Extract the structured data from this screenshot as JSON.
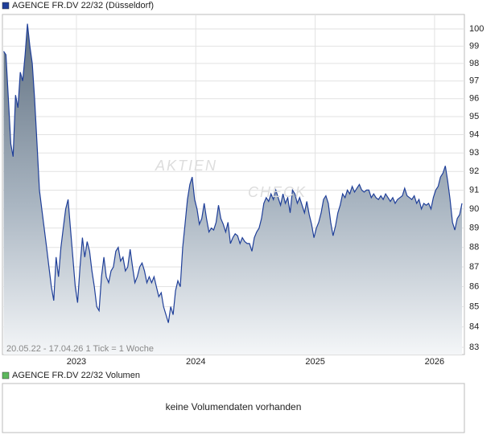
{
  "chart_data": {
    "type": "area",
    "title": "AGENCE FR.DV 22/32 (Düsseldorf)",
    "color": "#1f3f99",
    "footer": "20.05.22 - 17.04.26   1 Tick = 1 Woche",
    "watermark": [
      "AKTIEN",
      "CHECK"
    ],
    "volume_title": "AGENCE FR.DV 22/32 Volumen",
    "volume_color": "#5cb85c",
    "volume_note": "keine Volumendaten vorhanden",
    "log_scale": true,
    "grid": true,
    "xlim": [
      2022.38,
      2026.25
    ],
    "xticks": [
      2023,
      2024,
      2025,
      2026
    ],
    "ylim": [
      82.65,
      100.85
    ],
    "yticks": [
      83,
      84,
      85,
      86,
      87,
      88,
      89,
      90,
      91,
      92,
      93,
      94,
      95,
      96,
      97,
      98,
      99,
      100
    ],
    "x": [
      2022.39,
      2022.41,
      2022.43,
      2022.45,
      2022.47,
      2022.49,
      2022.51,
      2022.53,
      2022.55,
      2022.57,
      2022.59,
      2022.61,
      2022.63,
      2022.65,
      2022.67,
      2022.69,
      2022.71,
      2022.73,
      2022.75,
      2022.77,
      2022.79,
      2022.81,
      2022.83,
      2022.85,
      2022.87,
      2022.89,
      2022.91,
      2022.93,
      2022.95,
      2022.97,
      2022.99,
      2023.01,
      2023.03,
      2023.05,
      2023.07,
      2023.09,
      2023.11,
      2023.13,
      2023.15,
      2023.17,
      2023.19,
      2023.21,
      2023.23,
      2023.25,
      2023.27,
      2023.29,
      2023.31,
      2023.33,
      2023.35,
      2023.37,
      2023.39,
      2023.41,
      2023.43,
      2023.45,
      2023.47,
      2023.49,
      2023.51,
      2023.53,
      2023.55,
      2023.57,
      2023.59,
      2023.61,
      2023.63,
      2023.65,
      2023.67,
      2023.69,
      2023.71,
      2023.73,
      2023.75,
      2023.77,
      2023.79,
      2023.81,
      2023.83,
      2023.85,
      2023.87,
      2023.89,
      2023.91,
      2023.93,
      2023.95,
      2023.97,
      2023.99,
      2024.01,
      2024.03,
      2024.05,
      2024.07,
      2024.09,
      2024.11,
      2024.13,
      2024.15,
      2024.17,
      2024.19,
      2024.21,
      2024.23,
      2024.25,
      2024.27,
      2024.29,
      2024.31,
      2024.33,
      2024.35,
      2024.37,
      2024.39,
      2024.41,
      2024.43,
      2024.45,
      2024.47,
      2024.49,
      2024.51,
      2024.53,
      2024.55,
      2024.57,
      2024.59,
      2024.61,
      2024.63,
      2024.65,
      2024.67,
      2024.69,
      2024.71,
      2024.73,
      2024.75,
      2024.77,
      2024.79,
      2024.81,
      2024.83,
      2024.85,
      2024.87,
      2024.89,
      2024.91,
      2024.93,
      2024.95,
      2024.97,
      2024.99,
      2025.01,
      2025.03,
      2025.05,
      2025.07,
      2025.09,
      2025.11,
      2025.13,
      2025.15,
      2025.17,
      2025.19,
      2025.21,
      2025.23,
      2025.25,
      2025.27,
      2025.29,
      2025.31,
      2025.33,
      2025.35,
      2025.37,
      2025.39,
      2025.41,
      2025.43,
      2025.45,
      2025.47,
      2025.49,
      2025.51,
      2025.53,
      2025.55,
      2025.57,
      2025.59,
      2025.61,
      2025.63,
      2025.65,
      2025.67,
      2025.69,
      2025.71,
      2025.73,
      2025.75,
      2025.77,
      2025.79,
      2025.81,
      2025.83,
      2025.85,
      2025.87,
      2025.89,
      2025.91,
      2025.93,
      2025.95,
      2025.97,
      2025.99,
      2026.01,
      2026.03,
      2026.05,
      2026.07,
      2026.09,
      2026.11,
      2026.13,
      2026.15,
      2026.17,
      2026.19,
      2026.21,
      2026.23
    ],
    "values": [
      98.7,
      98.5,
      96,
      93.5,
      92.8,
      96.2,
      95.5,
      97.5,
      97,
      98.5,
      100.3,
      99,
      98,
      96,
      93.5,
      91,
      90,
      89,
      88,
      87,
      86,
      85.3,
      87.5,
      86.5,
      88,
      89,
      90,
      90.5,
      89,
      87.5,
      86,
      85.2,
      87,
      88.5,
      87.5,
      88.3,
      87.8,
      86.8,
      86,
      85,
      84.8,
      86.5,
      87.5,
      86.5,
      86.2,
      86.8,
      87,
      87.8,
      88,
      87.3,
      87.5,
      86.8,
      87,
      87.9,
      87,
      86.2,
      86.5,
      87,
      87.2,
      86.8,
      86.2,
      86.5,
      86.2,
      86.5,
      86,
      85.5,
      85.7,
      85,
      84.6,
      84.2,
      85,
      84.6,
      85.8,
      86.3,
      86,
      88,
      89.2,
      90.5,
      91.3,
      91.7,
      90.5,
      90,
      89.2,
      89.5,
      90.3,
      89.5,
      88.8,
      89,
      88.9,
      89.3,
      90.2,
      89.5,
      89.2,
      88.8,
      89.3,
      88.2,
      88.5,
      88.7,
      88.6,
      88.2,
      88.5,
      88.3,
      88.2,
      88.2,
      87.8,
      88.5,
      88.8,
      89,
      89.5,
      90.3,
      90.6,
      90.4,
      90.8,
      90.5,
      91,
      90.6,
      90.2,
      90.8,
      90.3,
      90.6,
      89.8,
      91,
      90.8,
      90.3,
      90.6,
      90.2,
      89.8,
      90.4,
      89.7,
      89.2,
      88.5,
      89,
      89.3,
      89.8,
      90.5,
      90.7,
      90.3,
      89.3,
      88.6,
      89.1,
      89.8,
      90.2,
      90.8,
      90.6,
      91,
      90.8,
      91.2,
      90.9,
      91.1,
      91.3,
      91,
      90.9,
      91,
      91,
      90.6,
      90.8,
      90.6,
      90.5,
      90.7,
      90.5,
      90.8,
      90.6,
      90.4,
      90.6,
      90.3,
      90.5,
      90.6,
      90.7,
      91.1,
      90.7,
      90.6,
      90.5,
      90.7,
      90.3,
      90.5,
      90,
      90.3,
      90.2,
      90.3,
      90,
      90.6,
      91,
      91.2,
      91.7,
      91.9,
      92.3,
      91.5,
      90.5,
      89.3,
      88.9,
      89.5,
      89.7,
      90.3
    ]
  }
}
